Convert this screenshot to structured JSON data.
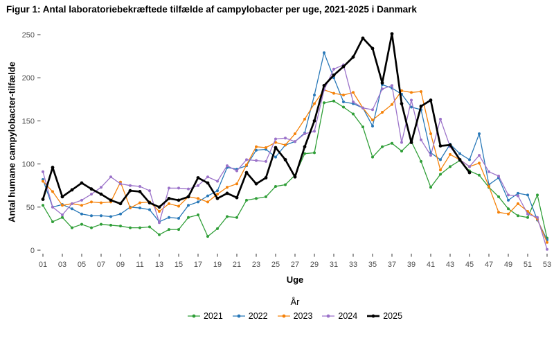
{
  "title": "Figur 1: Antal laboratoriebekræftede tilfælde af campylobacter per uge, 2021-2025 i Danmark",
  "chart_data": {
    "type": "line",
    "title": "Figur 1: Antal laboratoriebekræftede tilfælde af campylobacter per uge, 2021-2025 i Danmark",
    "xlabel": "Uge",
    "ylabel": "Antal humane campylobacter-tilfælde",
    "legend_title": "År",
    "legend_position": "bottom",
    "grid": false,
    "xlim": [
      1,
      53
    ],
    "ylim": [
      0,
      250
    ],
    "x": [
      1,
      2,
      3,
      4,
      5,
      6,
      7,
      8,
      9,
      10,
      11,
      12,
      13,
      14,
      15,
      16,
      17,
      18,
      19,
      20,
      21,
      22,
      23,
      24,
      25,
      26,
      27,
      28,
      29,
      30,
      31,
      32,
      33,
      34,
      35,
      36,
      37,
      38,
      39,
      40,
      41,
      42,
      43,
      44,
      45,
      46,
      47,
      48,
      49,
      50,
      51,
      52,
      53
    ],
    "x_ticks": [
      1,
      3,
      5,
      7,
      9,
      11,
      13,
      15,
      17,
      19,
      21,
      23,
      25,
      27,
      29,
      31,
      33,
      35,
      37,
      39,
      41,
      43,
      45,
      47,
      49,
      51,
      53
    ],
    "x_tick_labels": [
      "01",
      "03",
      "05",
      "07",
      "09",
      "11",
      "13",
      "15",
      "17",
      "19",
      "21",
      "23",
      "25",
      "27",
      "29",
      "31",
      "33",
      "35",
      "37",
      "39",
      "41",
      "43",
      "45",
      "47",
      "49",
      "51",
      "53"
    ],
    "y_ticks": [
      0,
      50,
      100,
      150,
      200,
      250
    ],
    "y_tick_labels": [
      "0",
      "50",
      "100",
      "150",
      "200",
      "250"
    ],
    "tick_label_color": "#4d4d4d",
    "series": [
      {
        "name": "2021",
        "color": "#2f9e37",
        "linewidth": 1.3,
        "values": [
          52,
          33,
          38,
          26,
          30,
          26,
          30,
          29,
          28,
          26,
          26,
          27,
          18,
          24,
          24,
          38,
          41,
          16,
          25,
          39,
          38,
          58,
          60,
          62,
          74,
          76,
          87,
          112,
          113,
          171,
          173,
          166,
          158,
          143,
          108,
          120,
          124,
          115,
          126,
          103,
          73,
          88,
          97,
          104,
          92,
          87,
          73,
          62,
          48,
          40,
          38,
          64,
          14
        ]
      },
      {
        "name": "2022",
        "color": "#2878b8",
        "linewidth": 1.3,
        "values": [
          82,
          50,
          53,
          48,
          42,
          40,
          40,
          39,
          42,
          50,
          49,
          47,
          33,
          38,
          37,
          52,
          56,
          63,
          69,
          96,
          94,
          98,
          116,
          117,
          108,
          122,
          126,
          136,
          180,
          229,
          200,
          172,
          170,
          165,
          144,
          192,
          188,
          181,
          166,
          163,
          113,
          105,
          123,
          112,
          105,
          135,
          76,
          84,
          58,
          66,
          64,
          35,
          12
        ]
      },
      {
        "name": "2023",
        "color": "#f5820a",
        "linewidth": 1.3,
        "values": [
          80,
          68,
          52,
          54,
          52,
          56,
          55,
          56,
          79,
          49,
          55,
          56,
          45,
          54,
          51,
          62,
          60,
          56,
          65,
          73,
          77,
          99,
          120,
          119,
          125,
          122,
          135,
          152,
          170,
          186,
          182,
          180,
          183,
          165,
          151,
          160,
          169,
          185,
          183,
          184,
          135,
          93,
          111,
          105,
          97,
          101,
          74,
          44,
          42,
          54,
          45,
          36,
          9
        ]
      },
      {
        "name": "2024",
        "color": "#9b72c9",
        "linewidth": 1.3,
        "values": [
          91,
          50,
          41,
          54,
          58,
          65,
          73,
          85,
          77,
          75,
          74,
          69,
          32,
          72,
          72,
          71,
          75,
          85,
          80,
          98,
          92,
          105,
          104,
          103,
          129,
          130,
          126,
          135,
          138,
          186,
          210,
          215,
          172,
          165,
          163,
          187,
          191,
          125,
          174,
          128,
          110,
          152,
          120,
          105,
          97,
          110,
          91,
          86,
          64,
          63,
          42,
          38,
          1
        ]
      },
      {
        "name": "2025",
        "color": "#000000",
        "linewidth": 2.7,
        "values": [
          59,
          96,
          62,
          70,
          78,
          71,
          65,
          58,
          54,
          69,
          68,
          55,
          50,
          60,
          58,
          62,
          84,
          78,
          60,
          66,
          61,
          90,
          77,
          84,
          119,
          105,
          85,
          120,
          150,
          191,
          203,
          213,
          224,
          246,
          234,
          194,
          251,
          170,
          125,
          167,
          174,
          121,
          122,
          105,
          90,
          null,
          null,
          null,
          null,
          null,
          null,
          null,
          null
        ]
      }
    ]
  }
}
